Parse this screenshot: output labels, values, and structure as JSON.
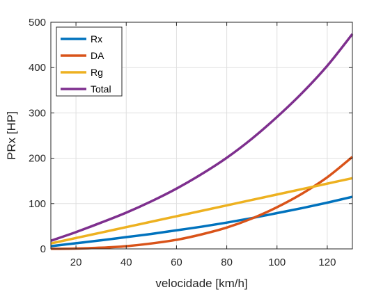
{
  "chart_data": {
    "type": "line",
    "title": "",
    "xlabel": "velocidade [km/h]",
    "ylabel": "PRx [HP]",
    "xlim": [
      10,
      130
    ],
    "ylim": [
      0,
      500
    ],
    "xticks": [
      20,
      40,
      60,
      80,
      100,
      120
    ],
    "yticks": [
      0,
      100,
      200,
      300,
      400,
      500
    ],
    "grid": true,
    "legend_position": "top-left",
    "x": [
      10,
      20,
      30,
      40,
      50,
      60,
      70,
      80,
      90,
      100,
      110,
      120,
      130
    ],
    "series": [
      {
        "name": "Rx",
        "color": "#0072BD",
        "values": [
          6,
          12.5,
          19,
          26,
          33,
          41,
          49,
          58,
          68,
          79,
          90,
          102,
          115
        ]
      },
      {
        "name": "DA",
        "color": "#D95319",
        "values": [
          0.1,
          0.8,
          2.6,
          6,
          12,
          20,
          32,
          47,
          67,
          92,
          122,
          158,
          203
        ]
      },
      {
        "name": "Rg",
        "color": "#EDB120",
        "values": [
          12,
          24,
          36,
          48,
          60,
          72,
          84,
          96,
          108,
          120,
          132,
          144,
          156
        ]
      },
      {
        "name": "Total",
        "color": "#7E2F8E",
        "values": [
          18,
          37,
          58,
          80,
          105,
          133,
          165,
          201,
          243,
          291,
          344,
          404,
          474
        ]
      }
    ]
  }
}
